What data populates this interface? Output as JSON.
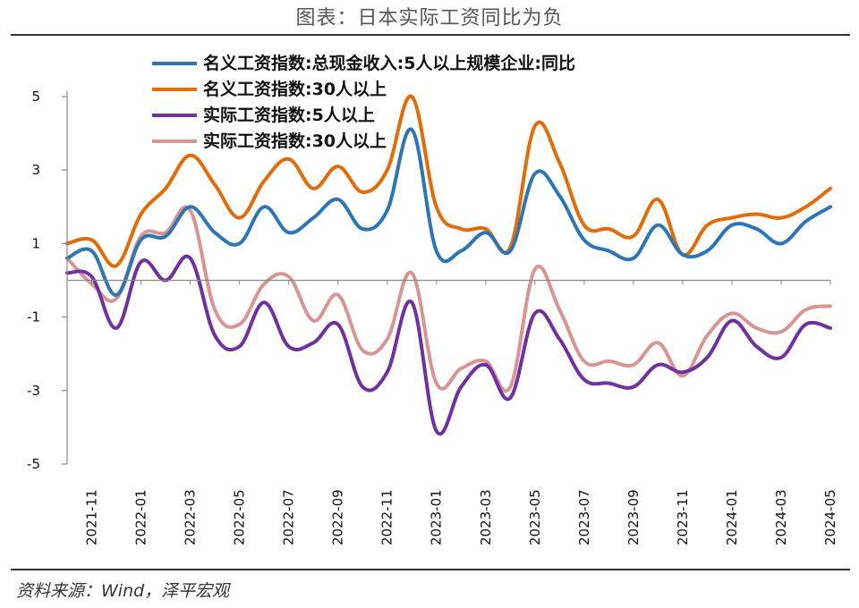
{
  "title": "图表：日本实际工资同比为负",
  "source": "资料来源：Wind，泽平宏观",
  "chart_data": {
    "type": "line",
    "title": "图表：日本实际工资同比为负",
    "xlabel": "",
    "ylabel": "",
    "ylim": [
      -5,
      5
    ],
    "yticks": [
      5,
      3,
      1,
      -1,
      -3,
      -5
    ],
    "x": [
      "2021-10",
      "2021-11",
      "2021-12",
      "2022-01",
      "2022-02",
      "2022-03",
      "2022-04",
      "2022-05",
      "2022-06",
      "2022-07",
      "2022-08",
      "2022-09",
      "2022-10",
      "2022-11",
      "2022-12",
      "2023-01",
      "2023-02",
      "2023-03",
      "2023-04",
      "2023-05",
      "2023-06",
      "2023-07",
      "2023-08",
      "2023-09",
      "2023-10",
      "2023-11",
      "2023-12",
      "2024-01",
      "2024-02",
      "2024-03",
      "2024-04",
      "2024-05"
    ],
    "x_ticks": [
      "2021-11",
      "2022-01",
      "2022-03",
      "2022-05",
      "2022-07",
      "2022-09",
      "2022-11",
      "2023-01",
      "2023-03",
      "2023-05",
      "2023-07",
      "2023-09",
      "2023-11",
      "2024-01",
      "2024-03",
      "2024-05"
    ],
    "legend_position": "top-left",
    "series": [
      {
        "name": "名义工资指数:总现金收入:5人以上规模企业:同比",
        "color": "#2E75B6",
        "values": [
          0.6,
          0.8,
          -0.4,
          1.1,
          1.2,
          2.0,
          1.3,
          1.0,
          2.0,
          1.3,
          1.7,
          2.2,
          1.4,
          1.9,
          4.1,
          0.8,
          0.8,
          1.3,
          0.8,
          2.9,
          2.3,
          1.1,
          0.8,
          0.6,
          1.5,
          0.7,
          0.8,
          1.5,
          1.4,
          1.0,
          1.6,
          2.0
        ]
      },
      {
        "name": "名义工资指数:30人以上",
        "color": "#E36C09",
        "values": [
          1.0,
          1.1,
          0.4,
          1.8,
          2.5,
          3.4,
          2.6,
          1.7,
          2.7,
          3.3,
          2.5,
          3.1,
          2.4,
          3.0,
          5.0,
          2.0,
          1.4,
          1.4,
          0.9,
          4.2,
          3.2,
          1.5,
          1.4,
          1.2,
          2.2,
          0.7,
          1.5,
          1.7,
          1.8,
          1.7,
          2.0,
          2.5
        ]
      },
      {
        "name": "实际工资指数:5人以上",
        "color": "#7030A0",
        "values": [
          0.2,
          0.1,
          -1.3,
          0.5,
          0.0,
          0.6,
          -1.5,
          -1.8,
          -0.6,
          -1.8,
          -1.7,
          -1.2,
          -2.9,
          -2.5,
          -0.6,
          -4.1,
          -2.9,
          -2.3,
          -3.2,
          -0.9,
          -1.6,
          -2.7,
          -2.8,
          -2.9,
          -2.3,
          -2.5,
          -2.1,
          -1.1,
          -1.8,
          -2.1,
          -1.2,
          -1.3
        ]
      },
      {
        "name": "实际工资指数:30人以上",
        "color": "#D99594",
        "values": [
          0.6,
          -0.1,
          -0.5,
          1.2,
          1.3,
          1.9,
          -0.8,
          -1.2,
          -0.1,
          0.1,
          -1.1,
          -0.4,
          -1.9,
          -1.6,
          0.2,
          -2.8,
          -2.4,
          -2.2,
          -2.9,
          0.3,
          -0.8,
          -2.2,
          -2.2,
          -2.3,
          -1.7,
          -2.6,
          -1.5,
          -0.9,
          -1.3,
          -1.4,
          -0.8,
          -0.7
        ]
      }
    ]
  }
}
